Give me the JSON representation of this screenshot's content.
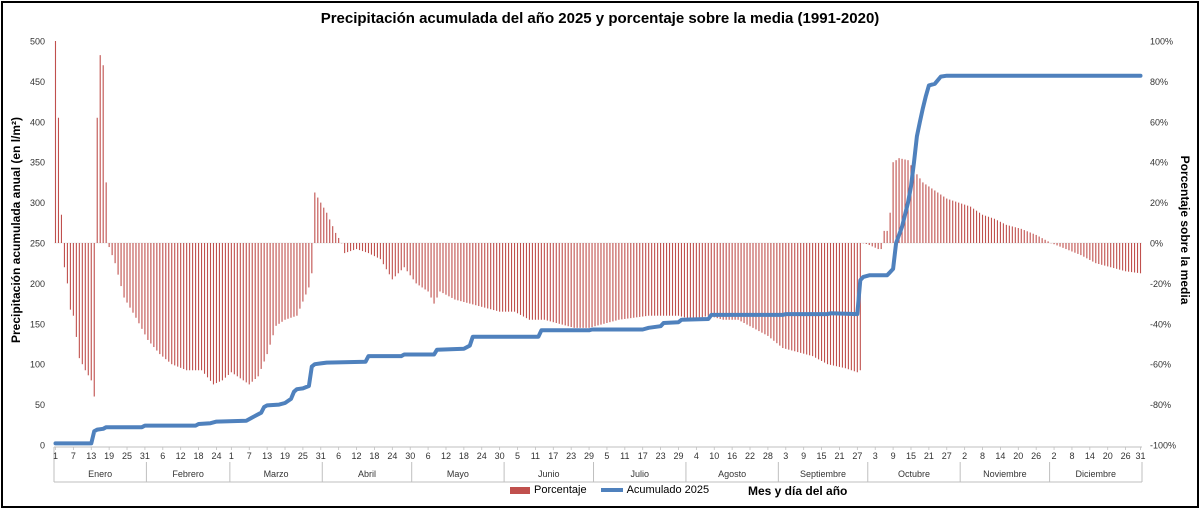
{
  "chart_data": {
    "type": "bar+line",
    "title": "Precipitación acumulada del año 2025 y porcentaje sobre la media (1991-2020)",
    "ylabel_left": "Precipitación acumulada anual (en l/m²)",
    "ylabel_right": "Porcentaje sobre la media",
    "xlabel": "Mes y día del año",
    "ylim_left": [
      0,
      500
    ],
    "yticks_left": [
      "0",
      "50",
      "100",
      "150",
      "200",
      "250",
      "300",
      "350",
      "400",
      "450",
      "500"
    ],
    "ylim_right": [
      -100,
      100
    ],
    "yticks_right": [
      "-100%",
      "-80%",
      "-60%",
      "-40%",
      "-20%",
      "0%",
      "20%",
      "40%",
      "60%",
      "80%",
      "100%"
    ],
    "months": [
      "Enero",
      "Febrero",
      "Marzo",
      "Abril",
      "Mayo",
      "Junio",
      "Julio",
      "Agosto",
      "Septiembre",
      "Octubre",
      "Noviembre",
      "Diciembre"
    ],
    "month_lengths": [
      31,
      28,
      31,
      30,
      31,
      30,
      31,
      31,
      30,
      31,
      30,
      31
    ],
    "day_tick_labels": [
      {
        "day": 1,
        "label": "1"
      },
      {
        "day": 7,
        "label": "7"
      },
      {
        "day": 13,
        "label": "13"
      },
      {
        "day": 19,
        "label": "19"
      },
      {
        "day": 25,
        "label": "25"
      },
      {
        "day": 31,
        "label": "31"
      },
      {
        "day": 37,
        "label": "6"
      },
      {
        "day": 43,
        "label": "12"
      },
      {
        "day": 49,
        "label": "18"
      },
      {
        "day": 55,
        "label": "24"
      },
      {
        "day": 60,
        "label": "1"
      },
      {
        "day": 66,
        "label": "7"
      },
      {
        "day": 72,
        "label": "13"
      },
      {
        "day": 78,
        "label": "19"
      },
      {
        "day": 84,
        "label": "25"
      },
      {
        "day": 90,
        "label": "31"
      },
      {
        "day": 96,
        "label": "6"
      },
      {
        "day": 102,
        "label": "12"
      },
      {
        "day": 108,
        "label": "18"
      },
      {
        "day": 114,
        "label": "24"
      },
      {
        "day": 120,
        "label": "30"
      },
      {
        "day": 126,
        "label": "6"
      },
      {
        "day": 132,
        "label": "12"
      },
      {
        "day": 138,
        "label": "18"
      },
      {
        "day": 144,
        "label": "24"
      },
      {
        "day": 150,
        "label": "30"
      },
      {
        "day": 156,
        "label": "5"
      },
      {
        "day": 162,
        "label": "11"
      },
      {
        "day": 168,
        "label": "17"
      },
      {
        "day": 174,
        "label": "23"
      },
      {
        "day": 180,
        "label": "29"
      },
      {
        "day": 186,
        "label": "5"
      },
      {
        "day": 192,
        "label": "11"
      },
      {
        "day": 198,
        "label": "17"
      },
      {
        "day": 204,
        "label": "23"
      },
      {
        "day": 210,
        "label": "29"
      },
      {
        "day": 216,
        "label": "4"
      },
      {
        "day": 222,
        "label": "10"
      },
      {
        "day": 228,
        "label": "16"
      },
      {
        "day": 234,
        "label": "22"
      },
      {
        "day": 240,
        "label": "28"
      },
      {
        "day": 246,
        "label": "3"
      },
      {
        "day": 252,
        "label": "9"
      },
      {
        "day": 258,
        "label": "15"
      },
      {
        "day": 264,
        "label": "21"
      },
      {
        "day": 270,
        "label": "27"
      },
      {
        "day": 276,
        "label": "3"
      },
      {
        "day": 282,
        "label": "9"
      },
      {
        "day": 288,
        "label": "15"
      },
      {
        "day": 294,
        "label": "21"
      },
      {
        "day": 300,
        "label": "27"
      },
      {
        "day": 306,
        "label": "2"
      },
      {
        "day": 312,
        "label": "8"
      },
      {
        "day": 318,
        "label": "14"
      },
      {
        "day": 324,
        "label": "20"
      },
      {
        "day": 330,
        "label": "26"
      },
      {
        "day": 336,
        "label": "2"
      },
      {
        "day": 342,
        "label": "8"
      },
      {
        "day": 348,
        "label": "14"
      },
      {
        "day": 354,
        "label": "20"
      },
      {
        "day": 360,
        "label": "26"
      },
      {
        "day": 365,
        "label": "31"
      }
    ],
    "series": [
      {
        "name": "Porcentaje",
        "type": "bar",
        "axis": "right",
        "color": "#c0504d",
        "keypoints": [
          [
            1,
            100
          ],
          [
            2,
            62
          ],
          [
            3,
            14
          ],
          [
            4,
            -12
          ],
          [
            5,
            -20
          ],
          [
            6,
            -33
          ],
          [
            7,
            -36
          ],
          [
            9,
            -57
          ],
          [
            11,
            -63
          ],
          [
            13,
            -68
          ],
          [
            14,
            -76
          ],
          [
            15,
            62
          ],
          [
            16,
            93
          ],
          [
            17,
            88
          ],
          [
            18,
            30
          ],
          [
            19,
            -2
          ],
          [
            21,
            -10
          ],
          [
            24,
            -27
          ],
          [
            28,
            -37
          ],
          [
            32,
            -48
          ],
          [
            36,
            -55
          ],
          [
            40,
            -60
          ],
          [
            45,
            -63
          ],
          [
            50,
            -63
          ],
          [
            54,
            -70
          ],
          [
            57,
            -68
          ],
          [
            60,
            -64
          ],
          [
            62,
            -66
          ],
          [
            66,
            -70
          ],
          [
            69,
            -66
          ],
          [
            72,
            -55
          ],
          [
            75,
            -41
          ],
          [
            78,
            -38
          ],
          [
            82,
            -36
          ],
          [
            86,
            -22
          ],
          [
            87,
            -15
          ],
          [
            88,
            25
          ],
          [
            90,
            20
          ],
          [
            92,
            15
          ],
          [
            95,
            5
          ],
          [
            97,
            0
          ],
          [
            98,
            -5
          ],
          [
            102,
            -3
          ],
          [
            106,
            -5
          ],
          [
            110,
            -8
          ],
          [
            114,
            -18
          ],
          [
            118,
            -12
          ],
          [
            122,
            -20
          ],
          [
            126,
            -24
          ],
          [
            128,
            -30
          ],
          [
            130,
            -24
          ],
          [
            135,
            -28
          ],
          [
            140,
            -30
          ],
          [
            145,
            -32
          ],
          [
            150,
            -34
          ],
          [
            155,
            -34
          ],
          [
            160,
            -38
          ],
          [
            165,
            -38
          ],
          [
            170,
            -40
          ],
          [
            175,
            -42
          ],
          [
            180,
            -42
          ],
          [
            185,
            -40
          ],
          [
            190,
            -38
          ],
          [
            200,
            -36
          ],
          [
            210,
            -36
          ],
          [
            215,
            -38
          ],
          [
            220,
            -36
          ],
          [
            225,
            -38
          ],
          [
            230,
            -38
          ],
          [
            235,
            -42
          ],
          [
            240,
            -46
          ],
          [
            245,
            -52
          ],
          [
            250,
            -54
          ],
          [
            255,
            -56
          ],
          [
            260,
            -60
          ],
          [
            266,
            -62
          ],
          [
            270,
            -64
          ],
          [
            271,
            -63
          ],
          [
            272,
            0
          ],
          [
            274,
            -1
          ],
          [
            277,
            -3
          ],
          [
            278,
            -3
          ],
          [
            279,
            6
          ],
          [
            280,
            6
          ],
          [
            281,
            15
          ],
          [
            282,
            40
          ],
          [
            284,
            42
          ],
          [
            287,
            41
          ],
          [
            289,
            36
          ],
          [
            292,
            30
          ],
          [
            296,
            26
          ],
          [
            300,
            22
          ],
          [
            304,
            20
          ],
          [
            308,
            18
          ],
          [
            312,
            14
          ],
          [
            316,
            12
          ],
          [
            320,
            9
          ],
          [
            325,
            7
          ],
          [
            330,
            4
          ],
          [
            335,
            0
          ],
          [
            340,
            -3
          ],
          [
            345,
            -6
          ],
          [
            350,
            -10
          ],
          [
            355,
            -12
          ],
          [
            360,
            -14
          ],
          [
            365,
            -15
          ]
        ]
      },
      {
        "name": "Acumulado 2025",
        "type": "line",
        "axis": "left",
        "color": "#4f81bd",
        "points": [
          [
            1,
            2
          ],
          [
            13,
            2
          ],
          [
            14,
            17
          ],
          [
            15,
            19
          ],
          [
            17,
            20
          ],
          [
            18,
            22
          ],
          [
            30,
            22
          ],
          [
            31,
            24
          ],
          [
            48,
            24
          ],
          [
            49,
            26
          ],
          [
            53,
            27
          ],
          [
            55,
            29
          ],
          [
            65,
            30
          ],
          [
            67,
            34
          ],
          [
            70,
            40
          ],
          [
            71,
            47
          ],
          [
            72,
            49
          ],
          [
            76,
            50
          ],
          [
            78,
            52
          ],
          [
            80,
            57
          ],
          [
            81,
            66
          ],
          [
            82,
            69
          ],
          [
            84,
            70
          ],
          [
            86,
            73
          ],
          [
            87,
            97
          ],
          [
            88,
            100
          ],
          [
            90,
            101
          ],
          [
            92,
            102
          ],
          [
            105,
            103
          ],
          [
            106,
            110
          ],
          [
            117,
            110
          ],
          [
            118,
            112
          ],
          [
            128,
            112
          ],
          [
            129,
            118
          ],
          [
            138,
            119
          ],
          [
            140,
            123
          ],
          [
            141,
            134
          ],
          [
            163,
            134
          ],
          [
            164,
            142
          ],
          [
            180,
            142
          ],
          [
            181,
            143
          ],
          [
            198,
            143
          ],
          [
            200,
            145
          ],
          [
            204,
            147
          ],
          [
            205,
            151
          ],
          [
            210,
            152
          ],
          [
            211,
            155
          ],
          [
            220,
            156
          ],
          [
            221,
            161
          ],
          [
            245,
            161
          ],
          [
            246,
            162
          ],
          [
            260,
            162
          ],
          [
            261,
            163
          ],
          [
            270,
            162
          ],
          [
            271,
            204
          ],
          [
            272,
            208
          ],
          [
            274,
            210
          ],
          [
            280,
            210
          ],
          [
            281,
            214
          ],
          [
            282,
            218
          ],
          [
            283,
            250
          ],
          [
            285,
            270
          ],
          [
            287,
            300
          ],
          [
            288,
            320
          ],
          [
            289,
            350
          ],
          [
            290,
            382
          ],
          [
            291,
            400
          ],
          [
            292,
            417
          ],
          [
            293,
            432
          ],
          [
            294,
            445
          ],
          [
            296,
            447
          ],
          [
            298,
            456
          ],
          [
            300,
            457
          ],
          [
            310,
            457
          ],
          [
            330,
            457
          ],
          [
            350,
            457
          ],
          [
            365,
            457
          ]
        ]
      }
    ],
    "legend": [
      "Porcentaje",
      "Acumulado 2025"
    ]
  }
}
